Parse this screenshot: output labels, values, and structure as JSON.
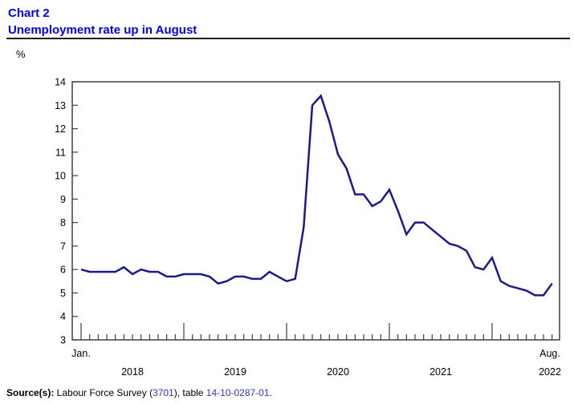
{
  "header": {
    "chart_label": "Chart 2",
    "title": "Unemployment rate up in August"
  },
  "y_axis": {
    "unit": "%",
    "ticks": [
      14,
      13,
      12,
      11,
      10,
      9,
      8,
      7,
      6,
      5,
      4,
      3
    ]
  },
  "x_axis": {
    "start_label": "Jan.",
    "year_labels": [
      "2018",
      "2019",
      "2020",
      "2021"
    ],
    "end_month_label": "Aug.",
    "end_year_label": "2022"
  },
  "chart_data": {
    "type": "line",
    "title": "Unemployment rate up in August",
    "ylabel": "%",
    "ylim": [
      3,
      14
    ],
    "grid": false,
    "legend": "none",
    "months": [
      "2018-01",
      "2018-02",
      "2018-03",
      "2018-04",
      "2018-05",
      "2018-06",
      "2018-07",
      "2018-08",
      "2018-09",
      "2018-10",
      "2018-11",
      "2018-12",
      "2019-01",
      "2019-02",
      "2019-03",
      "2019-04",
      "2019-05",
      "2019-06",
      "2019-07",
      "2019-08",
      "2019-09",
      "2019-10",
      "2019-11",
      "2019-12",
      "2020-01",
      "2020-02",
      "2020-03",
      "2020-04",
      "2020-05",
      "2020-06",
      "2020-07",
      "2020-08",
      "2020-09",
      "2020-10",
      "2020-11",
      "2020-12",
      "2021-01",
      "2021-02",
      "2021-03",
      "2021-04",
      "2021-05",
      "2021-06",
      "2021-07",
      "2021-08",
      "2021-09",
      "2021-10",
      "2021-11",
      "2021-12",
      "2022-01",
      "2022-02",
      "2022-03",
      "2022-04",
      "2022-05",
      "2022-06",
      "2022-07",
      "2022-08"
    ],
    "values": [
      6.0,
      5.9,
      5.9,
      5.9,
      5.9,
      6.1,
      5.8,
      6.0,
      5.9,
      5.9,
      5.7,
      5.7,
      5.8,
      5.8,
      5.8,
      5.7,
      5.4,
      5.5,
      5.7,
      5.7,
      5.6,
      5.6,
      5.9,
      5.7,
      5.5,
      5.6,
      7.8,
      13.0,
      13.4,
      12.3,
      10.9,
      10.3,
      9.2,
      9.2,
      8.7,
      8.9,
      9.4,
      8.5,
      7.5,
      8.0,
      8.0,
      7.7,
      7.4,
      7.1,
      7.0,
      6.8,
      6.1,
      6.0,
      6.5,
      5.5,
      5.3,
      5.2,
      5.1,
      4.9,
      4.9,
      5.4
    ]
  },
  "source": {
    "label": "Source(s):",
    "pre": " Labour Force Survey (",
    "link1": "3701",
    "mid": "), table ",
    "link2": "14-10-0287-01",
    "post": "."
  },
  "colors": {
    "title_blue": "#0000ee",
    "link_blue": "#3333cc",
    "series_navy": "#1a1a8f",
    "axis_gray": "#3f3f3f"
  }
}
